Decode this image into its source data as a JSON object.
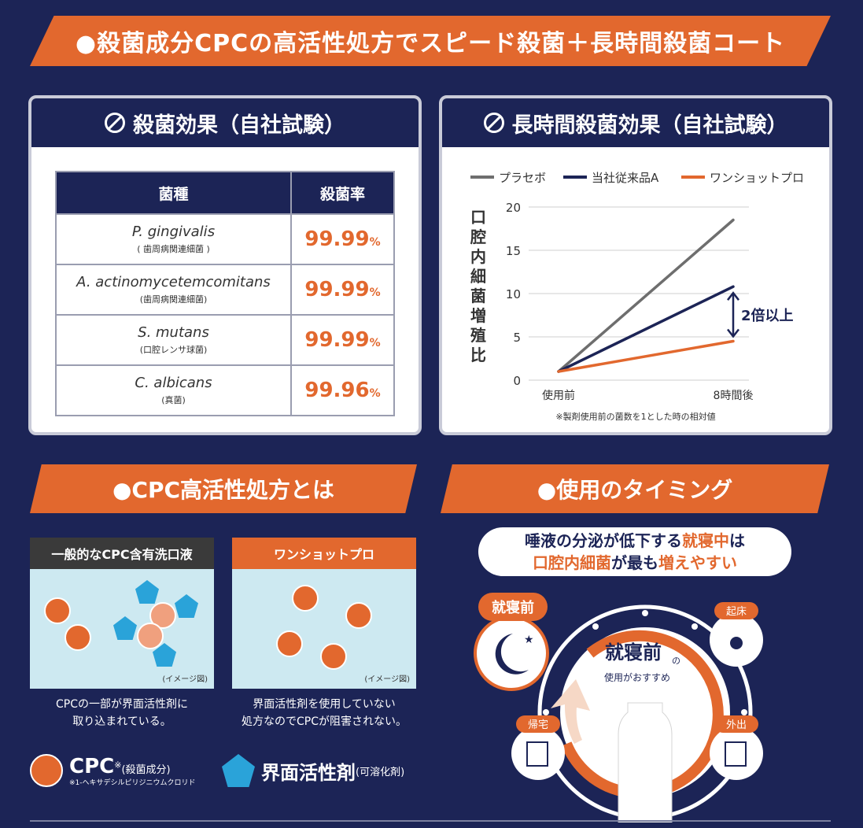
{
  "main_banner": "●殺菌成分CPCの高活性処方でスピード殺菌＋長時間殺菌コート",
  "panel1": {
    "title": "殺菌効果（自社試験）",
    "headers": [
      "菌種",
      "殺菌率"
    ],
    "rows": [
      {
        "name": "P. gingivalis",
        "sub": "( 歯周病関連細菌 )",
        "rate": "99.99",
        "unit": "%"
      },
      {
        "name": "A. actinomycetemcomitans",
        "sub": "(歯周病関連細菌)",
        "rate": "99.99",
        "unit": "%"
      },
      {
        "name": "S. mutans",
        "sub": "(口腔レンサ球菌)",
        "rate": "99.99",
        "unit": "%"
      },
      {
        "name": "C. albicans",
        "sub": "(真菌)",
        "rate": "99.96",
        "unit": "%"
      }
    ]
  },
  "panel2": {
    "title": "長時間殺菌効果（自社試験）",
    "note": "※製剤使用前の菌数を1とした時の相対値",
    "annotation": "2倍以上"
  },
  "chart_data": {
    "type": "line",
    "categories": [
      "使用前",
      "8時間後"
    ],
    "series": [
      {
        "name": "プラセボ",
        "values": [
          1,
          18.5
        ],
        "color": "#6e6e6e"
      },
      {
        "name": "当社従来品A",
        "values": [
          1,
          10.8
        ],
        "color": "#1c2456"
      },
      {
        "name": "ワンショットプロ",
        "values": [
          1,
          4.5
        ],
        "color": "#e2682e"
      }
    ],
    "ylabel": "口腔内細菌増殖比",
    "yticks": [
      0,
      5,
      10,
      15,
      20
    ],
    "ylim": [
      0,
      20
    ],
    "grid": true,
    "legend": "top"
  },
  "section2": {
    "banner": "●CPC高活性処方とは",
    "box1_title": "一般的なCPC含有洗口液",
    "box2_title": "ワンショットプロ",
    "image_note": "(イメージ図)",
    "caption1": [
      "CPCの一部が界面活性剤に",
      "取り込まれている。"
    ],
    "caption2": [
      "界面活性剤を使用していない",
      "処方なのでCPCが阻害されない。"
    ],
    "legend_cpc": "CPC",
    "legend_cpc_mark": "※",
    "legend_cpc_sub": "(殺菌成分)",
    "legend_cpc_note": "※1-ヘキサデシルピリジニウムクロリド",
    "legend_surf": "界面活性剤",
    "legend_surf_sub": "(可溶化剤)"
  },
  "section3": {
    "banner": "●使用のタイミング",
    "bubble_line1": {
      "a": "唾液の分泌が低下する",
      "b": "就寝中",
      "c": "は"
    },
    "bubble_line2": {
      "a": "口腔内細菌",
      "b": "が最も",
      "c": "増えやすい"
    },
    "before_sleep": "就寝前",
    "wake": "起床",
    "go_home": "帰宅",
    "go_out": "外出",
    "center_big": "就寝前",
    "center_no": "の",
    "center_small": "使用がおすすめ"
  }
}
